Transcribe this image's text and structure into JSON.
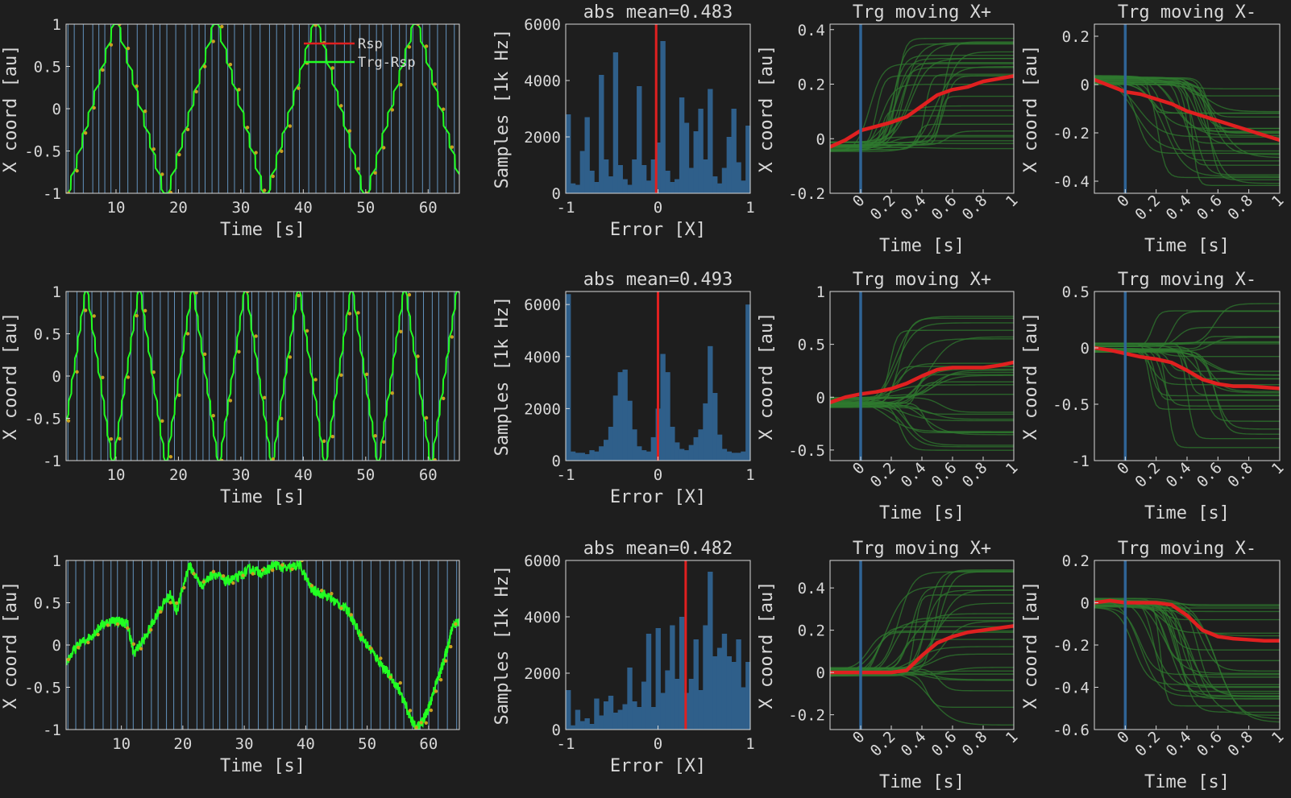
{
  "colors": {
    "background": "#1e1e1e",
    "axes_bg": "#1e1e1e",
    "axis": "#d8d8d8",
    "event_line": "#6fa7d9",
    "bar_fill": "#2f5f8a",
    "trace_green": "#22ff22",
    "trace_dark_green": "#2f7a2f",
    "mean_red": "#e02020",
    "marker_orange": "#c8a020",
    "vline_blue": "#2f6496"
  },
  "legend": {
    "items": [
      {
        "label": "Rsp",
        "color": "#e02020"
      },
      {
        "label": "Trg-Rsp",
        "color": "#22ff22"
      }
    ]
  },
  "chart_data": [
    {
      "row": 0,
      "type": "line",
      "title": "",
      "xlabel": "Time [s]",
      "ylabel": "X coord [au]",
      "xlim": [
        2,
        65
      ],
      "ylim": [
        -1,
        1
      ],
      "xticks": [
        "10",
        "20",
        "30",
        "40",
        "50",
        "60"
      ],
      "yticks": [
        "1",
        "0.5",
        "0",
        "-0.5",
        "-1"
      ],
      "series": [
        {
          "kind": "triangle",
          "period": 16,
          "phase": 2,
          "noise": 0
        }
      ]
    },
    {
      "row": 0,
      "type": "bar",
      "title": "abs mean=0.483",
      "xlabel": "Error [X]",
      "ylabel": "Samples [1k Hz]",
      "xlim": [
        -1,
        1
      ],
      "ylim": [
        0,
        6000
      ],
      "mean_line_x": -0.02,
      "xticks": [
        "-1",
        "0",
        "1"
      ],
      "yticks": [
        "6000",
        "4000",
        "2000",
        "0"
      ],
      "values": [
        2800,
        350,
        300,
        1500,
        2700,
        800,
        400,
        4200,
        1200,
        600,
        5000,
        1000,
        500,
        300,
        1200,
        3800,
        1000,
        450,
        1200,
        1800,
        5400,
        800,
        400,
        500,
        3400,
        2500,
        900,
        2200,
        3000,
        1200,
        3700,
        600,
        350,
        900,
        2000,
        3000,
        1100,
        450,
        2400
      ]
    },
    {
      "row": 0,
      "type": "line",
      "title": "Trg moving X+",
      "xlabel": "Time [s]",
      "ylabel": "X coord [au]",
      "xlim": [
        -0.2,
        1
      ],
      "ylim": [
        -0.2,
        0.42
      ],
      "event_x": 0,
      "xticks": [
        "0",
        "0.2",
        "0.4",
        "0.6",
        "0.8",
        "1"
      ],
      "yticks": [
        "0.4",
        "0.2",
        "0",
        "-0.2"
      ],
      "mean": {
        "x": [
          -0.2,
          -0.1,
          0,
          0.1,
          0.2,
          0.3,
          0.4,
          0.5,
          0.6,
          0.7,
          0.8,
          0.9,
          1.0
        ],
        "y": [
          -0.03,
          -0.005,
          0.03,
          0.045,
          0.06,
          0.08,
          0.12,
          0.16,
          0.18,
          0.19,
          0.21,
          0.22,
          0.23
        ]
      },
      "traces": {
        "count": 28,
        "end_range": [
          -0.05,
          0.4
        ]
      }
    },
    {
      "row": 0,
      "type": "line",
      "title": "Trg moving X-",
      "xlabel": "Time [s]",
      "ylabel": "X coord [au]",
      "xlim": [
        -0.2,
        1
      ],
      "ylim": [
        -0.45,
        0.25
      ],
      "event_x": 0,
      "xticks": [
        "0",
        "0.2",
        "0.4",
        "0.6",
        "0.8",
        "1"
      ],
      "yticks": [
        "0.2",
        "0",
        "-0.2",
        "-0.4"
      ],
      "mean": {
        "x": [
          -0.2,
          -0.1,
          0,
          0.1,
          0.2,
          0.3,
          0.4,
          0.5,
          0.6,
          0.7,
          0.8,
          0.9,
          1.0
        ],
        "y": [
          0.02,
          -0.005,
          -0.03,
          -0.04,
          -0.06,
          -0.08,
          -0.11,
          -0.13,
          -0.15,
          -0.17,
          -0.19,
          -0.21,
          -0.23
        ]
      },
      "traces": {
        "count": 28,
        "end_range": [
          -0.42,
          0.0
        ]
      }
    },
    {
      "row": 1,
      "type": "line",
      "title": "",
      "xlabel": "Time [s]",
      "ylabel": "X coord [au]",
      "xlim": [
        2,
        65
      ],
      "ylim": [
        -1,
        1
      ],
      "xticks": [
        "10",
        "20",
        "30",
        "40",
        "50",
        "60"
      ],
      "yticks": [
        "1",
        "0.5",
        "0",
        "-0.5",
        "-1"
      ],
      "series": [
        {
          "kind": "triangle",
          "period": 8.5,
          "phase": 1,
          "noise": 0
        }
      ]
    },
    {
      "row": 1,
      "type": "bar",
      "title": "abs mean=0.493",
      "xlabel": "Error [X]",
      "ylabel": "Samples [1k Hz]",
      "xlim": [
        -1,
        1
      ],
      "ylim": [
        0,
        6500
      ],
      "mean_line_x": 0,
      "xticks": [
        "-1",
        "0",
        "1"
      ],
      "yticks": [
        "6000",
        "4000",
        "2000",
        "0"
      ],
      "values": [
        6400,
        350,
        300,
        300,
        250,
        400,
        350,
        550,
        800,
        1300,
        2500,
        3400,
        3500,
        2300,
        1200,
        550,
        400,
        350,
        900,
        2000,
        4100,
        3400,
        1300,
        700,
        450,
        400,
        600,
        900,
        1200,
        2200,
        4400,
        2600,
        1000,
        450,
        350,
        300,
        300,
        350,
        6000
      ]
    },
    {
      "row": 1,
      "type": "line",
      "title": "Trg moving X+",
      "xlabel": "Time [s]",
      "ylabel": "X coord [au]",
      "xlim": [
        -0.2,
        1
      ],
      "ylim": [
        -0.6,
        1
      ],
      "event_x": 0,
      "xticks": [
        "0",
        "0.2",
        "0.4",
        "0.6",
        "0.8",
        "1"
      ],
      "yticks": [
        "1",
        "0.5",
        "0",
        "-0.5"
      ],
      "mean": {
        "x": [
          -0.2,
          -0.1,
          0,
          0.1,
          0.2,
          0.3,
          0.4,
          0.5,
          0.6,
          0.7,
          0.8,
          0.9,
          1.0
        ],
        "y": [
          -0.05,
          0.0,
          0.03,
          0.05,
          0.08,
          0.13,
          0.2,
          0.26,
          0.28,
          0.28,
          0.28,
          0.3,
          0.33
        ]
      },
      "traces": {
        "count": 28,
        "end_range": [
          -0.55,
          0.8
        ]
      }
    },
    {
      "row": 1,
      "type": "line",
      "title": "Trg moving X-",
      "xlabel": "Time [s]",
      "ylabel": "X coord [au]",
      "xlim": [
        -0.2,
        1
      ],
      "ylim": [
        -1,
        0.5
      ],
      "event_x": 0,
      "xticks": [
        "0",
        "0.2",
        "0.4",
        "0.6",
        "0.8",
        "1"
      ],
      "yticks": [
        "0.5",
        "0",
        "-0.5",
        "-1"
      ],
      "mean": {
        "x": [
          -0.2,
          -0.1,
          0,
          0.1,
          0.2,
          0.3,
          0.4,
          0.5,
          0.6,
          0.7,
          0.8,
          0.9,
          1.0
        ],
        "y": [
          0.0,
          -0.02,
          -0.05,
          -0.08,
          -0.1,
          -0.13,
          -0.2,
          -0.28,
          -0.32,
          -0.34,
          -0.34,
          -0.35,
          -0.36
        ]
      },
      "traces": {
        "count": 28,
        "end_range": [
          -0.95,
          0.45
        ]
      }
    },
    {
      "row": 2,
      "type": "line",
      "title": "",
      "xlabel": "Time [s]",
      "ylabel": "X coord [au]",
      "xlim": [
        1,
        65
      ],
      "ylim": [
        -1,
        1
      ],
      "xticks": [
        "10",
        "20",
        "30",
        "40",
        "50",
        "60"
      ],
      "yticks": [
        "1",
        "0.5",
        "0",
        "-0.5",
        "-1"
      ],
      "series": [
        {
          "kind": "points",
          "x": [
            1,
            3,
            5,
            7,
            9,
            11,
            12,
            14,
            16,
            18,
            19,
            21,
            23,
            25,
            27,
            29,
            31,
            33,
            35,
            37,
            39,
            41,
            43,
            45,
            47,
            49,
            51,
            53,
            55,
            57,
            58,
            59,
            60,
            61,
            62,
            63,
            64,
            65
          ],
          "y": [
            -0.2,
            0.0,
            0.1,
            0.25,
            0.3,
            0.25,
            -0.1,
            0.1,
            0.4,
            0.6,
            0.4,
            0.95,
            0.7,
            0.85,
            0.75,
            0.8,
            0.9,
            0.85,
            0.95,
            0.9,
            0.95,
            0.65,
            0.6,
            0.5,
            0.4,
            0.1,
            -0.1,
            -0.3,
            -0.5,
            -0.85,
            -1.0,
            -0.9,
            -0.75,
            -0.5,
            -0.3,
            -0.05,
            0.25,
            0.28
          ]
        }
      ]
    },
    {
      "row": 2,
      "type": "bar",
      "title": "abs mean=0.482",
      "xlabel": "Error [X]",
      "ylabel": "Samples [1k Hz]",
      "xlim": [
        -1,
        1
      ],
      "ylim": [
        0,
        6000
      ],
      "mean_line_x": 0.3,
      "xticks": [
        "-1",
        "0",
        "1"
      ],
      "yticks": [
        "6000",
        "4000",
        "2000",
        "0"
      ],
      "values": [
        1400,
        150,
        700,
        300,
        400,
        200,
        1100,
        500,
        1000,
        1200,
        600,
        700,
        900,
        2200,
        1000,
        800,
        1700,
        3400,
        800,
        3600,
        1300,
        2100,
        3700,
        1800,
        4000,
        1300,
        1800,
        3200,
        1400,
        3700,
        5600,
        2600,
        2900,
        3400,
        2600,
        2400,
        3200,
        1500,
        2400
      ]
    },
    {
      "row": 2,
      "type": "line",
      "title": "Trg moving X+",
      "xlabel": "Time [s]",
      "ylabel": "X coord [au]",
      "xlim": [
        -0.2,
        1
      ],
      "ylim": [
        -0.27,
        0.53
      ],
      "event_x": 0,
      "xticks": [
        "0",
        "0.2",
        "0.4",
        "0.6",
        "0.8",
        "1"
      ],
      "yticks": [
        "0.4",
        "0.2",
        "0",
        "-0.2"
      ],
      "mean": {
        "x": [
          -0.2,
          -0.1,
          0,
          0.1,
          0.2,
          0.3,
          0.4,
          0.5,
          0.6,
          0.7,
          0.8,
          0.9,
          1.0
        ],
        "y": [
          0.0,
          0.0,
          0.0,
          0.0,
          0.0,
          0.01,
          0.08,
          0.14,
          0.17,
          0.19,
          0.2,
          0.21,
          0.22
        ]
      },
      "traces": {
        "count": 28,
        "end_range": [
          -0.25,
          0.5
        ]
      }
    },
    {
      "row": 2,
      "type": "line",
      "title": "Trg moving X-",
      "xlabel": "Time [s]",
      "ylabel": "X coord [au]",
      "xlim": [
        -0.2,
        1
      ],
      "ylim": [
        -0.6,
        0.2
      ],
      "event_x": 0,
      "xticks": [
        "0",
        "0.2",
        "0.4",
        "0.6",
        "0.8",
        "1"
      ],
      "yticks": [
        "0.2",
        "0",
        "-0.2",
        "-0.4",
        "-0.6"
      ],
      "mean": {
        "x": [
          -0.2,
          -0.1,
          0,
          0.1,
          0.2,
          0.3,
          0.4,
          0.5,
          0.6,
          0.7,
          0.8,
          0.9,
          1.0
        ],
        "y": [
          0.0,
          0.01,
          0.0,
          0.0,
          0.0,
          -0.01,
          -0.06,
          -0.13,
          -0.16,
          -0.17,
          -0.175,
          -0.18,
          -0.18
        ]
      },
      "traces": {
        "count": 28,
        "end_range": [
          -0.58,
          0.02
        ]
      }
    }
  ]
}
